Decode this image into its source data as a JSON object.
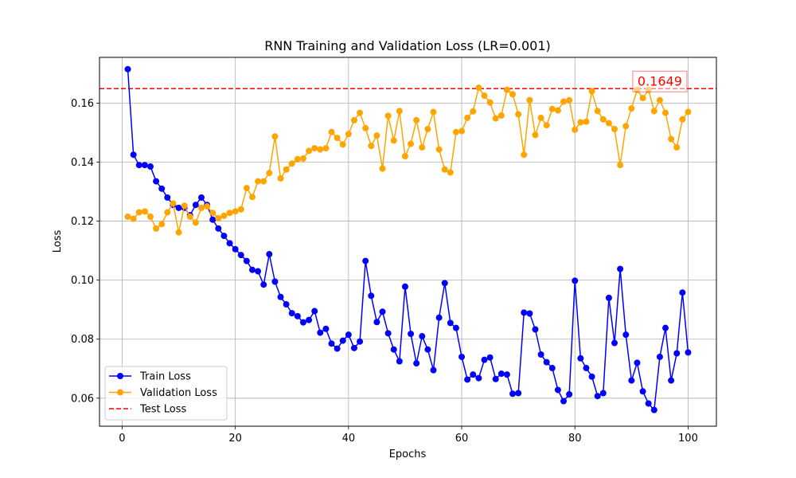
{
  "chart_data": {
    "type": "line",
    "title": "RNN Training and Validation Loss (LR=0.001)",
    "xlabel": "Epochs",
    "ylabel": "Loss",
    "xlim": [
      -4,
      105
    ],
    "ylim": [
      0.0505,
      0.1755
    ],
    "xticks": [
      0,
      20,
      40,
      60,
      80,
      100
    ],
    "yticks": [
      0.06,
      0.08,
      0.1,
      0.12,
      0.14,
      0.16
    ],
    "ytick_labels": [
      "0.06",
      "0.08",
      "0.10",
      "0.12",
      "0.14",
      "0.16"
    ],
    "grid": true,
    "legend_position": "lower-left",
    "x": [
      1,
      2,
      3,
      4,
      5,
      6,
      7,
      8,
      9,
      10,
      11,
      12,
      13,
      14,
      15,
      16,
      17,
      18,
      19,
      20,
      21,
      22,
      23,
      24,
      25,
      26,
      27,
      28,
      29,
      30,
      31,
      32,
      33,
      34,
      35,
      36,
      37,
      38,
      39,
      40,
      41,
      42,
      43,
      44,
      45,
      46,
      47,
      48,
      49,
      50,
      51,
      52,
      53,
      54,
      55,
      56,
      57,
      58,
      59,
      60,
      61,
      62,
      63,
      64,
      65,
      66,
      67,
      68,
      69,
      70,
      71,
      72,
      73,
      74,
      75,
      76,
      77,
      78,
      79,
      80,
      81,
      82,
      83,
      84,
      85,
      86,
      87,
      88,
      89,
      90,
      91,
      92,
      93,
      94,
      95,
      96,
      97,
      98,
      99,
      100
    ],
    "series": [
      {
        "name": "Train Loss",
        "color": "#0000ff",
        "style": "solid",
        "marker": "circle",
        "values": [
          0.1715,
          0.1425,
          0.139,
          0.139,
          0.1385,
          0.1335,
          0.131,
          0.128,
          0.1255,
          0.1245,
          0.1245,
          0.122,
          0.1255,
          0.128,
          0.1255,
          0.1205,
          0.1175,
          0.115,
          0.1125,
          0.1105,
          0.1085,
          0.1065,
          0.1035,
          0.103,
          0.0985,
          0.1088,
          0.0995,
          0.0943,
          0.0918,
          0.0888,
          0.0878,
          0.0857,
          0.0865,
          0.0895,
          0.0822,
          0.0835,
          0.0785,
          0.0768,
          0.0795,
          0.0815,
          0.077,
          0.0792,
          0.1065,
          0.0947,
          0.0858,
          0.0893,
          0.082,
          0.0765,
          0.0725,
          0.0978,
          0.0818,
          0.0718,
          0.081,
          0.0765,
          0.0695,
          0.0873,
          0.099,
          0.0855,
          0.0838,
          0.074,
          0.0663,
          0.068,
          0.0668,
          0.073,
          0.0738,
          0.0665,
          0.0683,
          0.068,
          0.0615,
          0.0617,
          0.089,
          0.0887,
          0.0833,
          0.0748,
          0.0722,
          0.0702,
          0.0628,
          0.059,
          0.0613,
          0.0998,
          0.0735,
          0.0702,
          0.0673,
          0.0607,
          0.0617,
          0.094,
          0.0787,
          0.1038,
          0.0815,
          0.066,
          0.072,
          0.0623,
          0.0582,
          0.056,
          0.074,
          0.0838,
          0.066,
          0.0752,
          0.0958,
          0.0755
        ]
      },
      {
        "name": "Validation Loss",
        "color": "#ffa500",
        "style": "solid",
        "marker": "circle",
        "values": [
          0.1215,
          0.1208,
          0.123,
          0.1233,
          0.1215,
          0.1175,
          0.119,
          0.123,
          0.126,
          0.1162,
          0.1252,
          0.1215,
          0.1195,
          0.1245,
          0.125,
          0.1228,
          0.121,
          0.1218,
          0.1228,
          0.1233,
          0.124,
          0.1312,
          0.1282,
          0.1335,
          0.1335,
          0.1363,
          0.1487,
          0.1345,
          0.1375,
          0.1395,
          0.141,
          0.1412,
          0.1438,
          0.1447,
          0.1443,
          0.1447,
          0.1502,
          0.1482,
          0.146,
          0.1495,
          0.1542,
          0.1567,
          0.1515,
          0.1455,
          0.149,
          0.1378,
          0.1557,
          0.1473,
          0.1573,
          0.142,
          0.1462,
          0.1542,
          0.145,
          0.1512,
          0.157,
          0.1443,
          0.1375,
          0.1365,
          0.1502,
          0.1505,
          0.155,
          0.1572,
          0.1652,
          0.1625,
          0.1602,
          0.1548,
          0.1558,
          0.1645,
          0.163,
          0.1562,
          0.1425,
          0.161,
          0.1492,
          0.155,
          0.1525,
          0.158,
          0.1575,
          0.1605,
          0.161,
          0.151,
          0.1535,
          0.1537,
          0.164,
          0.1573,
          0.1545,
          0.1532,
          0.1512,
          0.139,
          0.1522,
          0.1582,
          0.1645,
          0.1617,
          0.1645,
          0.1573,
          0.161,
          0.1567,
          0.1478,
          0.145,
          0.1545,
          0.157
        ]
      }
    ],
    "reference_line": {
      "name": "Test Loss",
      "value": 0.1649,
      "color": "#ff0000",
      "style": "dashed"
    },
    "annotation": {
      "text": "0.1649",
      "x": 95,
      "y": 0.1649,
      "color": "#ff0000"
    },
    "legend": [
      {
        "label": "Train Loss",
        "color": "#0000ff",
        "kind": "line-marker"
      },
      {
        "label": "Validation Loss",
        "color": "#ffa500",
        "kind": "line-marker"
      },
      {
        "label": "Test Loss",
        "color": "#ff0000",
        "kind": "dashed"
      }
    ]
  }
}
